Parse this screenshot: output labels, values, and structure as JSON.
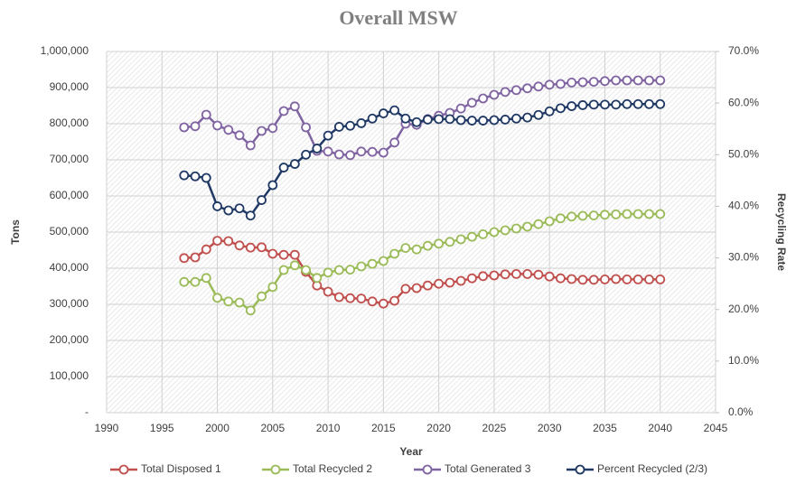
{
  "chart_data": {
    "type": "line",
    "title": "Overall MSW",
    "xlabel": "Year",
    "ylabel": "Tons",
    "y2label": "Recycling Rate",
    "x": [
      1997,
      1998,
      1999,
      2000,
      2001,
      2002,
      2003,
      2004,
      2005,
      2006,
      2007,
      2008,
      2009,
      2010,
      2011,
      2012,
      2013,
      2014,
      2015,
      2016,
      2017,
      2018,
      2019,
      2020,
      2021,
      2022,
      2023,
      2024,
      2025,
      2026,
      2027,
      2028,
      2029,
      2030,
      2031,
      2032,
      2033,
      2034,
      2035,
      2036,
      2037,
      2038,
      2039,
      2040
    ],
    "series": [
      {
        "name": "Total Disposed 1",
        "color": "#c0504d",
        "values": [
          428000,
          430000,
          452000,
          476000,
          475000,
          463000,
          457000,
          458000,
          440000,
          437000,
          437000,
          390000,
          352000,
          335000,
          320000,
          317000,
          316000,
          308000,
          302000,
          310000,
          343000,
          345000,
          352000,
          357000,
          360000,
          365000,
          372000,
          378000,
          380000,
          383000,
          384000,
          384000,
          382000,
          377000,
          372000,
          370000,
          368000,
          368000,
          369000,
          370000,
          369000,
          369000,
          369000,
          369000
        ]
      },
      {
        "name": "Total Recycled 2",
        "color": "#9bbb59",
        "values": [
          362000,
          362000,
          373000,
          318000,
          308000,
          305000,
          283000,
          322000,
          348000,
          395000,
          408000,
          395000,
          373000,
          388000,
          395000,
          396000,
          405000,
          412000,
          420000,
          440000,
          456000,
          452000,
          462000,
          468000,
          473000,
          480000,
          487000,
          494000,
          500000,
          505000,
          510000,
          515000,
          522000,
          530000,
          538000,
          543000,
          545000,
          546000,
          548000,
          549000,
          550000,
          550000,
          550000,
          550000
        ]
      },
      {
        "name": "Total Generated 3",
        "color": "#8064a2",
        "values": [
          790000,
          793000,
          825000,
          795000,
          783000,
          768000,
          740000,
          780000,
          788000,
          835000,
          848000,
          790000,
          725000,
          723000,
          715000,
          713000,
          723000,
          722000,
          720000,
          748000,
          800000,
          797000,
          813000,
          822000,
          830000,
          842000,
          858000,
          870000,
          880000,
          888000,
          893000,
          898000,
          903000,
          908000,
          910000,
          914000,
          915000,
          916000,
          918000,
          920000,
          920000,
          920000,
          920000,
          920000
        ]
      },
      {
        "name": "Percent Recycled (2/3)",
        "color": "#1f3864",
        "axis": "y2",
        "values": [
          46.0,
          45.8,
          45.5,
          40.0,
          39.2,
          39.6,
          38.2,
          41.2,
          44.1,
          47.5,
          48.2,
          50.0,
          51.2,
          53.7,
          55.4,
          55.6,
          56.1,
          57.0,
          58.0,
          58.6,
          57.0,
          56.3,
          56.8,
          56.9,
          56.9,
          56.7,
          56.6,
          56.6,
          56.7,
          56.8,
          57.0,
          57.2,
          57.7,
          58.4,
          59.0,
          59.4,
          59.6,
          59.7,
          59.7,
          59.7,
          59.8,
          59.8,
          59.8,
          59.8
        ]
      }
    ],
    "xlim": [
      1990,
      2045
    ],
    "xticks": [
      1990,
      1995,
      2000,
      2005,
      2010,
      2015,
      2020,
      2025,
      2030,
      2035,
      2040,
      2045
    ],
    "ylim": [
      0,
      1000000
    ],
    "yticks": [
      {
        "value": 0,
        "label": "-"
      },
      {
        "value": 100000,
        "label": "100,000"
      },
      {
        "value": 200000,
        "label": "200,000"
      },
      {
        "value": 300000,
        "label": "300,000"
      },
      {
        "value": 400000,
        "label": "400,000"
      },
      {
        "value": 500000,
        "label": "500,000"
      },
      {
        "value": 600000,
        "label": "600,000"
      },
      {
        "value": 700000,
        "label": "700,000"
      },
      {
        "value": 800000,
        "label": "800,000"
      },
      {
        "value": 900000,
        "label": "900,000"
      },
      {
        "value": 1000000,
        "label": "1,000,000"
      }
    ],
    "y2lim": [
      0,
      70
    ],
    "y2ticks": [
      {
        "value": 0,
        "label": "0.0%"
      },
      {
        "value": 10,
        "label": "10.0%"
      },
      {
        "value": 20,
        "label": "20.0%"
      },
      {
        "value": 30,
        "label": "30.0%"
      },
      {
        "value": 40,
        "label": "40.0%"
      },
      {
        "value": 50,
        "label": "50.0%"
      },
      {
        "value": 60,
        "label": "60.0%"
      },
      {
        "value": 70,
        "label": "70.0%"
      }
    ],
    "grid": true,
    "legend": "bottom"
  }
}
